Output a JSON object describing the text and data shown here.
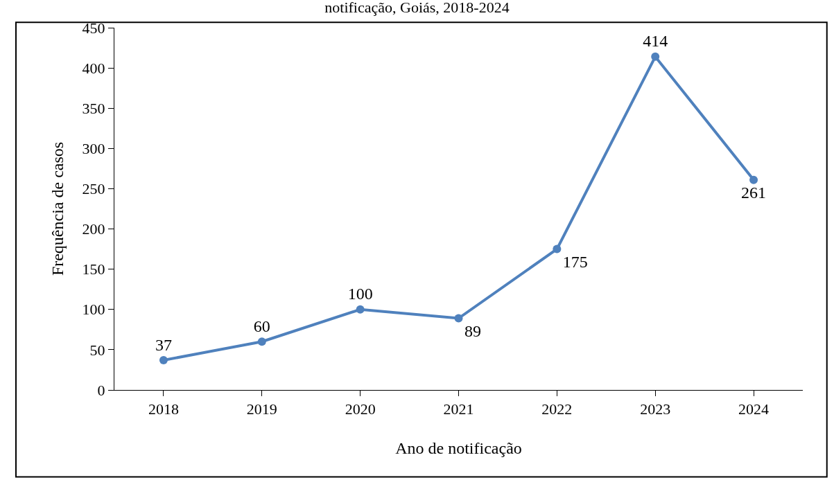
{
  "chart_data": {
    "type": "line",
    "title": "notificação, Goiás, 2018-2024",
    "xlabel": "Ano de notificação",
    "ylabel": "Frequência de casos",
    "categories": [
      "2018",
      "2019",
      "2020",
      "2021",
      "2022",
      "2023",
      "2024"
    ],
    "series": [
      {
        "color": "#4f81bd",
        "values": [
          37,
          60,
          100,
          89,
          175,
          414,
          261
        ]
      }
    ],
    "ylim": [
      0,
      450
    ],
    "yticks": [
      0,
      50,
      100,
      150,
      200,
      250,
      300,
      350,
      400,
      450
    ],
    "data_labels": true,
    "marker": "circle",
    "line_style": "solid",
    "legend": false
  }
}
